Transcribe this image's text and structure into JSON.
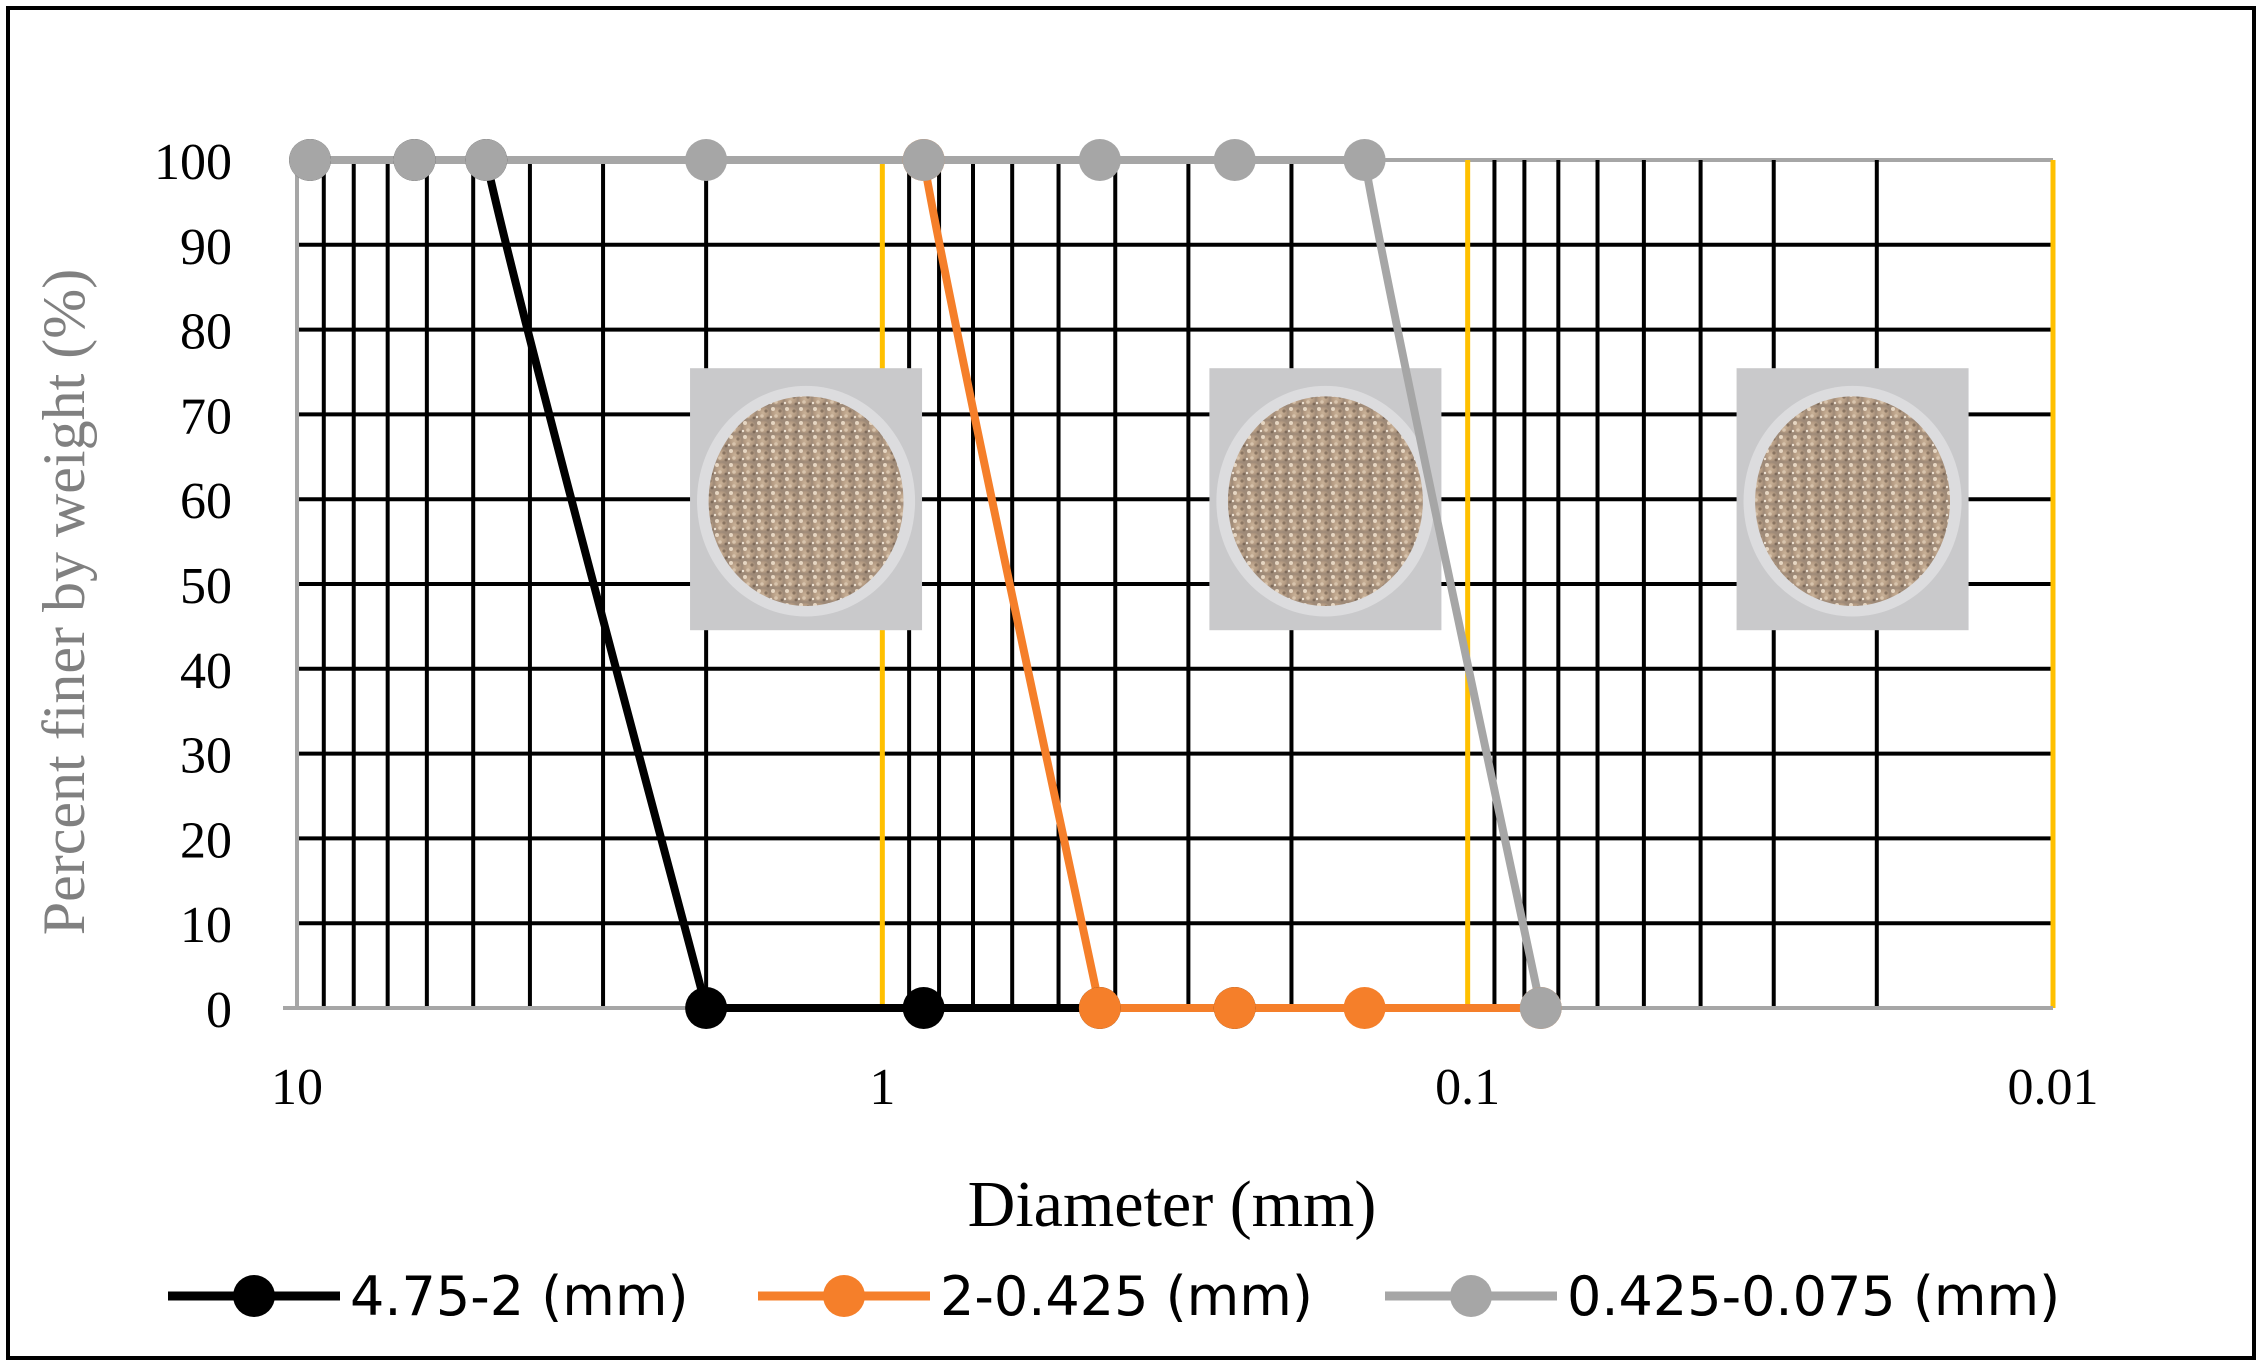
{
  "chart_data": {
    "type": "line",
    "title": "",
    "xlabel": "Diameter (mm)",
    "ylabel": "Percent finer by weight (%)",
    "x_scale": "log",
    "x_reversed": true,
    "xlim": [
      10,
      0.01
    ],
    "ylim": [
      0,
      100
    ],
    "x_ticks": [
      {
        "value": 10,
        "label": "10"
      },
      {
        "value": 1,
        "label": "1"
      },
      {
        "value": 0.1,
        "label": "0.1"
      },
      {
        "value": 0.01,
        "label": "0.01"
      }
    ],
    "y_ticks": [
      "0",
      "10",
      "20",
      "30",
      "40",
      "50",
      "60",
      "70",
      "80",
      "90",
      "100"
    ],
    "grid": true,
    "decade_lines_color": "#ffc000",
    "grid_color": "#000000",
    "legend_position": "bottom",
    "series": [
      {
        "name": "4.75-2 (mm)",
        "color": "#000000",
        "x": [
          9.5,
          6.3,
          4.75,
          2.0,
          0.85,
          0.425,
          0.25
        ],
        "y": [
          100,
          100,
          100,
          0,
          0,
          0,
          0
        ]
      },
      {
        "name": "2-0.425 (mm)",
        "color": "#f57f2a",
        "x": [
          0.85,
          0.425,
          0.25,
          0.15,
          0.075
        ],
        "y": [
          100,
          0,
          0,
          0,
          0
        ]
      },
      {
        "name": "0.425-0.075 (mm)",
        "color": "#a6a6a6",
        "x": [
          9.5,
          6.3,
          4.75,
          2.0,
          0.85,
          0.425,
          0.25,
          0.15,
          0.075
        ],
        "y": [
          100,
          100,
          100,
          100,
          100,
          100,
          100,
          100,
          0
        ]
      }
    ],
    "photos": [
      {
        "name": "sample-photo-4.75-2",
        "x_center": 1.35,
        "y_center": 60
      },
      {
        "name": "sample-photo-2-0.425",
        "x_center": 0.175,
        "y_center": 60
      },
      {
        "name": "sample-photo-0.425-0.075",
        "x_center": 0.022,
        "y_center": 60
      }
    ]
  }
}
